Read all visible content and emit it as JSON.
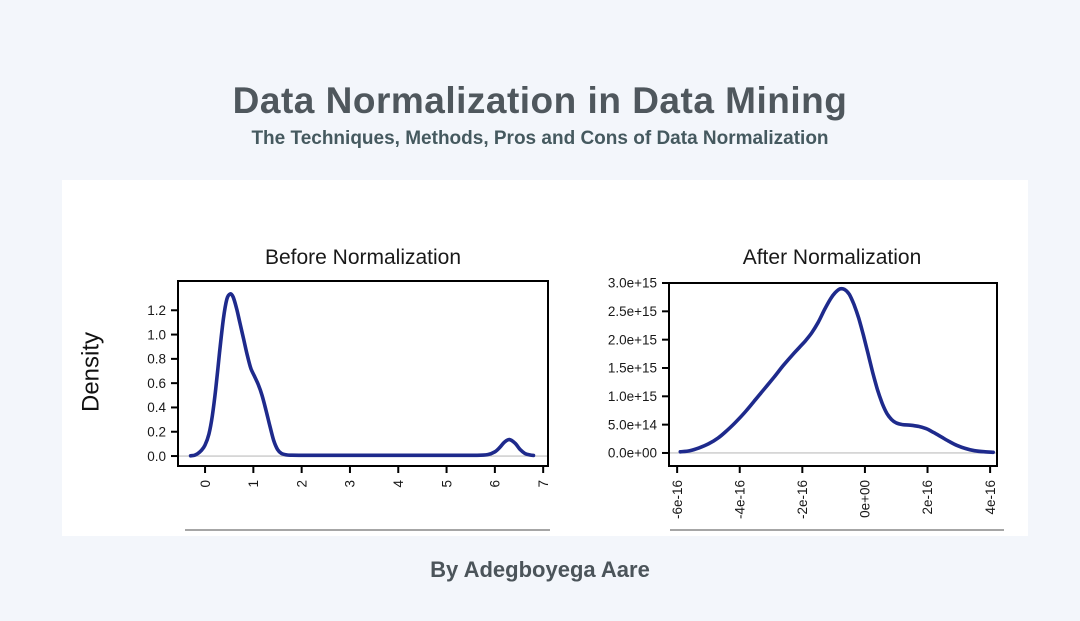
{
  "page": {
    "title": "Data Normalization in Data Mining",
    "subtitle": "The Techniques, Methods, Pros and Cons of Data Normalization",
    "byline": "By Adegboyega Aare",
    "colors": {
      "background": "#f3f6fb",
      "card": "#ffffff",
      "title_text": "#4f575d",
      "subtitle_text": "#45595f",
      "byline_text": "#4b545a",
      "chart_text": "#191919",
      "curve": "#1e2a8c",
      "zero_line": "#c9c9c9",
      "divider": "#a6a6a6"
    }
  },
  "chart_data": [
    {
      "type": "line",
      "name": "density-before-normalization",
      "title": "Before Normalization",
      "xlabel": "",
      "ylabel": "Density",
      "legend": null,
      "grid": false,
      "x_rotated_labels": true,
      "x_tick_labels": [
        "0",
        "1",
        "2",
        "3",
        "4",
        "5",
        "6",
        "7"
      ],
      "x_tick_values": [
        0,
        1,
        2,
        3,
        4,
        5,
        6,
        7
      ],
      "y_tick_labels": [
        "0.0",
        "0.2",
        "0.4",
        "0.6",
        "0.8",
        "1.0",
        "1.2"
      ],
      "y_tick_values": [
        0,
        0.2,
        0.4,
        0.6,
        0.8,
        1.0,
        1.2
      ],
      "xlim": [
        -0.56,
        7.1
      ],
      "ylim": [
        -0.082,
        1.441
      ],
      "zero_line": true,
      "line_color": "#1e2a8c",
      "zero_line_color": "#c9c9c9",
      "points": [
        [
          -0.3,
          0.002
        ],
        [
          -0.22,
          0.006
        ],
        [
          -0.15,
          0.02
        ],
        [
          -0.08,
          0.045
        ],
        [
          0.0,
          0.09
        ],
        [
          0.08,
          0.18
        ],
        [
          0.15,
          0.33
        ],
        [
          0.22,
          0.55
        ],
        [
          0.3,
          0.85
        ],
        [
          0.38,
          1.13
        ],
        [
          0.45,
          1.29
        ],
        [
          0.52,
          1.335
        ],
        [
          0.58,
          1.31
        ],
        [
          0.65,
          1.22
        ],
        [
          0.72,
          1.1
        ],
        [
          0.8,
          0.96
        ],
        [
          0.88,
          0.82
        ],
        [
          0.95,
          0.72
        ],
        [
          1.02,
          0.66
        ],
        [
          1.1,
          0.59
        ],
        [
          1.18,
          0.5
        ],
        [
          1.26,
          0.38
        ],
        [
          1.34,
          0.25
        ],
        [
          1.42,
          0.13
        ],
        [
          1.5,
          0.055
        ],
        [
          1.58,
          0.022
        ],
        [
          1.68,
          0.01
        ],
        [
          1.8,
          0.007
        ],
        [
          2.2,
          0.006
        ],
        [
          2.8,
          0.006
        ],
        [
          3.4,
          0.006
        ],
        [
          4.0,
          0.006
        ],
        [
          4.6,
          0.006
        ],
        [
          5.2,
          0.006
        ],
        [
          5.6,
          0.006
        ],
        [
          5.85,
          0.012
        ],
        [
          6.0,
          0.035
        ],
        [
          6.1,
          0.07
        ],
        [
          6.2,
          0.115
        ],
        [
          6.3,
          0.135
        ],
        [
          6.42,
          0.105
        ],
        [
          6.52,
          0.055
        ],
        [
          6.62,
          0.022
        ],
        [
          6.72,
          0.009
        ],
        [
          6.8,
          0.005
        ]
      ]
    },
    {
      "type": "line",
      "name": "density-after-normalization",
      "title": "After Normalization",
      "xlabel": "",
      "ylabel": "",
      "legend": null,
      "grid": false,
      "x_rotated_labels": true,
      "x_tick_labels": [
        "-6e-16",
        "-4e-16",
        "-2e-16",
        "0e+00",
        "2e-16",
        "4e-16"
      ],
      "x_tick_values": [
        -6e-16,
        -4e-16,
        -2e-16,
        0,
        2e-16,
        4e-16
      ],
      "y_tick_labels": [
        "0.0e+00",
        "5.0e+14",
        "1.0e+15",
        "1.5e+15",
        "2.0e+15",
        "2.5e+15",
        "3.0e+15"
      ],
      "y_tick_values": [
        0,
        500000000000000.0,
        1000000000000000.0,
        1500000000000000.0,
        2000000000000000.0,
        2500000000000000.0,
        3000000000000000.0
      ],
      "xlim": [
        -6.26e-16,
        4.22e-16
      ],
      "ylim": [
        -230000000000000.0,
        3000000000000000.0
      ],
      "zero_line": true,
      "line_color": "#1e2a8c",
      "zero_line_color": "#c9c9c9",
      "points": [
        [
          -5.9e-16,
          20000000000000.0
        ],
        [
          -5.6e-16,
          40000000000000.0
        ],
        [
          -5.3e-16,
          90000000000000.0
        ],
        [
          -5e-16,
          160000000000000.0
        ],
        [
          -4.7e-16,
          260000000000000.0
        ],
        [
          -4.4e-16,
          400000000000000.0
        ],
        [
          -4.1e-16,
          560000000000000.0
        ],
        [
          -3.8e-16,
          740000000000000.0
        ],
        [
          -3.5e-16,
          940000000000000.0
        ],
        [
          -3.2e-16,
          1140000000000000.0
        ],
        [
          -2.9e-16,
          1340000000000000.0
        ],
        [
          -2.6e-16,
          1550000000000000.0
        ],
        [
          -2.3e-16,
          1740000000000000.0
        ],
        [
          -2.1e-16,
          1860000000000000.0
        ],
        [
          -1.9e-16,
          1980000000000000.0
        ],
        [
          -1.7e-16,
          2120000000000000.0
        ],
        [
          -1.5e-16,
          2300000000000000.0
        ],
        [
          -1.3e-16,
          2520000000000000.0
        ],
        [
          -1.1e-16,
          2720000000000000.0
        ],
        [
          -9.5e-17,
          2830000000000000.0
        ],
        [
          -8e-17,
          2895000000000000.0
        ],
        [
          -6.5e-17,
          2885000000000000.0
        ],
        [
          -5e-17,
          2800000000000000.0
        ],
        [
          -3.5e-17,
          2620000000000000.0
        ],
        [
          -2e-17,
          2380000000000000.0
        ],
        [
          -5e-18,
          2080000000000000.0
        ],
        [
          1e-17,
          1750000000000000.0
        ],
        [
          2.5e-17,
          1420000000000000.0
        ],
        [
          4e-17,
          1120000000000000.0
        ],
        [
          5.5e-17,
          880000000000000.0
        ],
        [
          7e-17,
          700000000000000.0
        ],
        [
          8.5e-17,
          590000000000000.0
        ],
        [
          1e-16,
          530000000000000.0
        ],
        [
          1.2e-16,
          500000000000000.0
        ],
        [
          1.45e-16,
          490000000000000.0
        ],
        [
          1.7e-16,
          470000000000000.0
        ],
        [
          1.95e-16,
          430000000000000.0
        ],
        [
          2.2e-16,
          360000000000000.0
        ],
        [
          2.45e-16,
          280000000000000.0
        ],
        [
          2.7e-16,
          200000000000000.0
        ],
        [
          2.95e-16,
          130000000000000.0
        ],
        [
          3.2e-16,
          80000000000000.0
        ],
        [
          3.5e-16,
          40000000000000.0
        ],
        [
          3.8e-16,
          22000000000000.0
        ],
        [
          4.1e-16,
          12000000000000.0
        ]
      ]
    }
  ]
}
